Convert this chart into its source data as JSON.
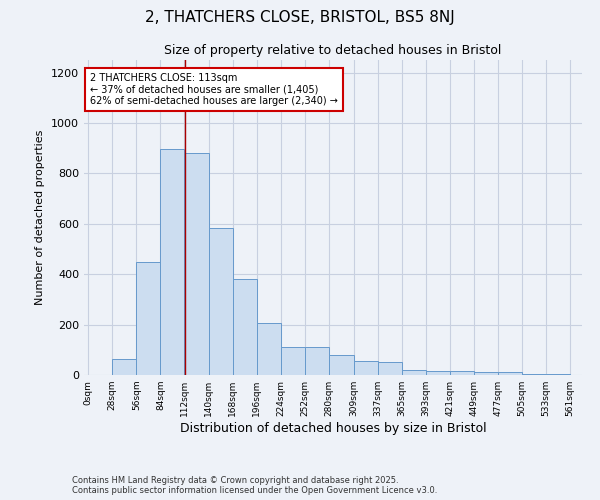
{
  "title1": "2, THATCHERS CLOSE, BRISTOL, BS5 8NJ",
  "title2": "Size of property relative to detached houses in Bristol",
  "xlabel": "Distribution of detached houses by size in Bristol",
  "ylabel": "Number of detached properties",
  "bar_edges": [
    0,
    28,
    56,
    84,
    112,
    140,
    168,
    196,
    224,
    252,
    280,
    309,
    337,
    365,
    393,
    421,
    449,
    477,
    505,
    533,
    561
  ],
  "bar_values": [
    0,
    65,
    450,
    895,
    880,
    585,
    380,
    205,
    110,
    110,
    80,
    55,
    50,
    20,
    15,
    15,
    10,
    10,
    5,
    5,
    0
  ],
  "bar_color": "#ccddf0",
  "bar_edge_color": "#6699cc",
  "property_size": 113,
  "vline_color": "#aa0000",
  "annotation_text": "2 THATCHERS CLOSE: 113sqm\n← 37% of detached houses are smaller (1,405)\n62% of semi-detached houses are larger (2,340) →",
  "annotation_box_color": "#ffffff",
  "annotation_box_edge_color": "#cc0000",
  "ylim": [
    0,
    1250
  ],
  "yticks": [
    0,
    200,
    400,
    600,
    800,
    1000,
    1200
  ],
  "bg_color": "#eef2f8",
  "grid_color": "#c8d0e0",
  "footnote": "Contains HM Land Registry data © Crown copyright and database right 2025.\nContains public sector information licensed under the Open Government Licence v3.0."
}
